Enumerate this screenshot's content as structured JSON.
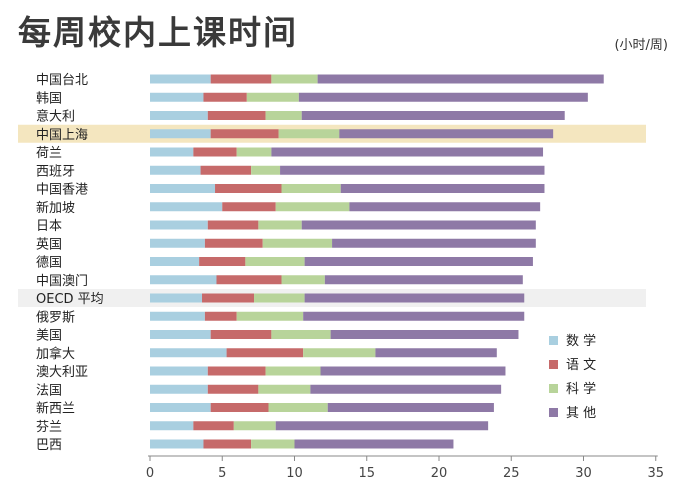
{
  "header": {
    "title": "每周校内上课时间",
    "unit": "(小时/周)"
  },
  "chart_data": {
    "type": "bar",
    "orientation": "horizontal",
    "stacked": true,
    "title": "每周校内上课时间",
    "xlabel": "",
    "ylabel": "",
    "unit": "(小时/周)",
    "xlim": [
      0,
      35
    ],
    "xticks": [
      0,
      5,
      10,
      15,
      20,
      25,
      30,
      35
    ],
    "grid": false,
    "legend_position": "right",
    "highlighted_categories": [
      "中国上海",
      "OECD 平均"
    ],
    "categories": [
      "中国台北",
      "韩国",
      "意大利",
      "中国上海",
      "荷兰",
      "西班牙",
      "中国香港",
      "新加坡",
      "日本",
      "英国",
      "德国",
      "中国澳门",
      "OECD 平均",
      "俄罗斯",
      "美国",
      "加拿大",
      "澳大利亚",
      "法国",
      "新西兰",
      "芬兰",
      "巴西"
    ],
    "series": [
      {
        "name": "数学",
        "color": "#a9cfe0",
        "values": [
          4.2,
          3.7,
          4.0,
          4.2,
          3.0,
          3.5,
          4.5,
          5.0,
          4.0,
          3.8,
          3.4,
          4.6,
          3.6,
          3.8,
          4.2,
          5.3,
          4.0,
          4.0,
          4.2,
          3.0,
          3.7
        ]
      },
      {
        "name": "语文",
        "color": "#c66a6a",
        "values": [
          4.2,
          3.0,
          4.0,
          4.7,
          3.0,
          3.5,
          4.6,
          3.7,
          3.5,
          4.0,
          3.2,
          4.5,
          3.6,
          2.2,
          4.2,
          5.3,
          4.0,
          3.5,
          4.0,
          2.8,
          3.3
        ]
      },
      {
        "name": "科学",
        "color": "#b8d49a",
        "values": [
          3.2,
          3.6,
          2.5,
          4.2,
          2.4,
          2.0,
          4.1,
          5.1,
          3.0,
          4.8,
          4.1,
          3.0,
          3.5,
          4.6,
          4.1,
          5.0,
          3.8,
          3.6,
          4.1,
          2.9,
          3.0
        ]
      },
      {
        "name": "其他",
        "color": "#8e79a6",
        "values": [
          19.8,
          20.0,
          18.2,
          14.8,
          18.8,
          18.3,
          14.1,
          13.2,
          16.2,
          14.1,
          15.8,
          13.7,
          15.2,
          15.3,
          13.0,
          8.4,
          12.8,
          13.2,
          11.5,
          14.7,
          11.0
        ]
      }
    ]
  }
}
